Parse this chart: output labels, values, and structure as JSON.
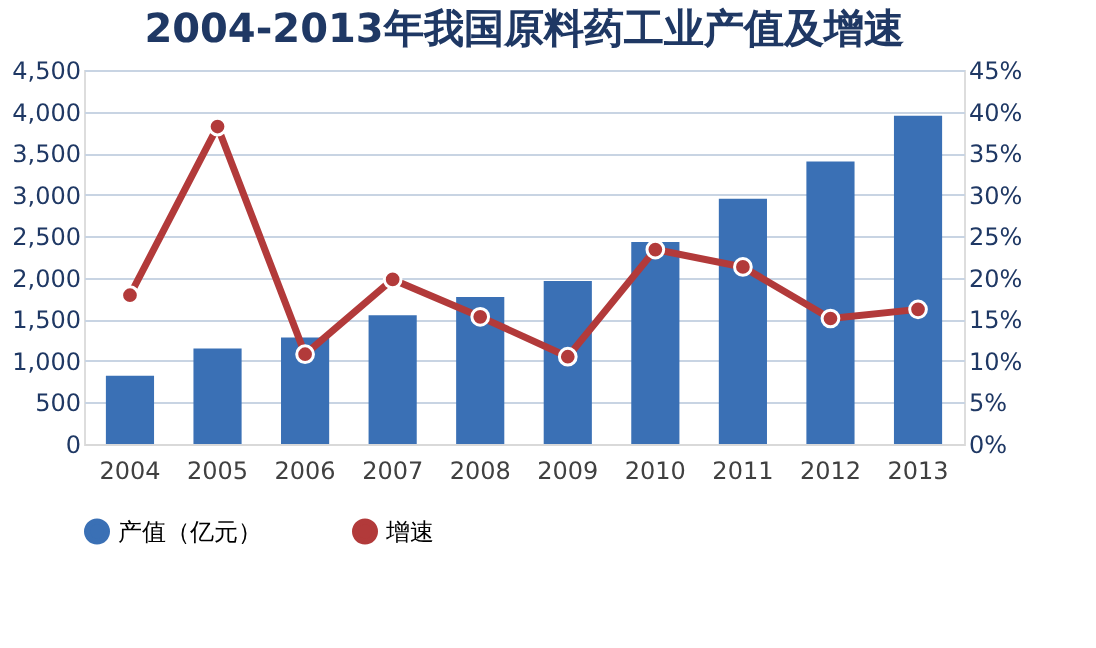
{
  "chart_data": {
    "type": "bar",
    "title": "2004-2013年我国原料药工业产值及增速",
    "categories": [
      "2004",
      "2005",
      "2006",
      "2007",
      "2008",
      "2009",
      "2010",
      "2011",
      "2012",
      "2013"
    ],
    "series": [
      {
        "name": "产值（亿元）",
        "color": "#3a70b5",
        "values": [
          820,
          1150,
          1280,
          1550,
          1770,
          1960,
          2430,
          2950,
          3400,
          3950
        ]
      },
      {
        "name": "增速",
        "type": "line",
        "axis": "y2",
        "color": "#b23a3a",
        "marker": "circle",
        "values": [
          17.9,
          38.2,
          10.8,
          19.8,
          15.3,
          10.5,
          23.4,
          21.3,
          15.1,
          16.2
        ]
      }
    ],
    "ylim": [
      0,
      4500
    ],
    "yticks": [
      {
        "value": 0,
        "label": "0"
      },
      {
        "value": 500,
        "label": "500"
      },
      {
        "value": 1000,
        "label": "1,000"
      },
      {
        "value": 1500,
        "label": "1,500"
      },
      {
        "value": 2000,
        "label": "2,000"
      },
      {
        "value": 2500,
        "label": "2,500"
      },
      {
        "value": 3000,
        "label": "3,000"
      },
      {
        "value": 3500,
        "label": "3,500"
      },
      {
        "value": 4000,
        "label": "4,000"
      },
      {
        "value": 4500,
        "label": "4,500"
      }
    ],
    "y2lim": [
      0,
      45
    ],
    "y2ticks": [
      {
        "value": 0,
        "label": "0%"
      },
      {
        "value": 5,
        "label": "5%"
      },
      {
        "value": 10,
        "label": "10%"
      },
      {
        "value": 15,
        "label": "15%"
      },
      {
        "value": 20,
        "label": "20%"
      },
      {
        "value": 25,
        "label": "25%"
      },
      {
        "value": 30,
        "label": "30%"
      },
      {
        "value": 35,
        "label": "35%"
      },
      {
        "value": 40,
        "label": "40%"
      },
      {
        "value": 45,
        "label": "45%"
      }
    ],
    "grid": "y",
    "legend": "bottom"
  }
}
